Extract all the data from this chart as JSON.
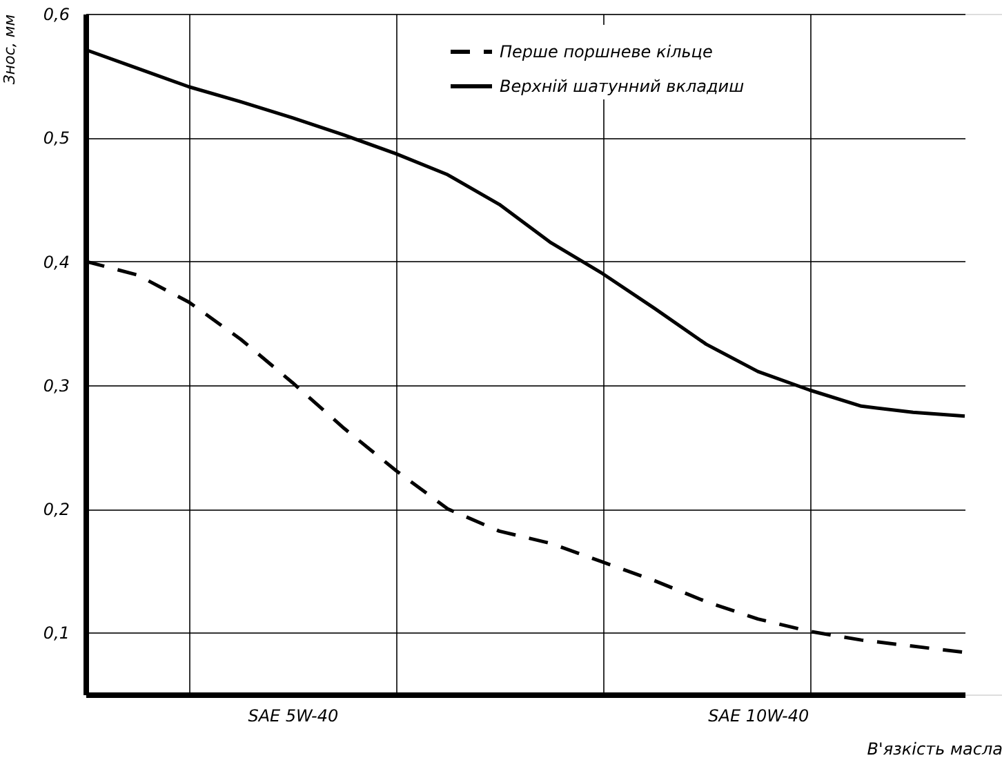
{
  "chart_data": {
    "type": "line",
    "xlabel": "В'язкість масла",
    "ylabel": "Знос, мм",
    "categories": [
      null,
      null,
      null,
      null,
      "SAE 5W-40",
      null,
      null,
      null,
      null,
      null,
      null,
      null,
      null,
      "SAE 10W-40",
      null,
      null,
      null,
      null
    ],
    "ylim": [
      0.05,
      0.6
    ],
    "yticks": [
      {
        "value": 0.1,
        "label": "0,1"
      },
      {
        "value": 0.2,
        "label": "0,2"
      },
      {
        "value": 0.3,
        "label": "0,3"
      },
      {
        "value": 0.4,
        "label": "0,4"
      },
      {
        "value": 0.5,
        "label": "0,5"
      },
      {
        "value": 0.6,
        "label": "0,6"
      }
    ],
    "grid": true,
    "legend": "top",
    "marker": "none",
    "series": [
      {
        "name": "Перше поршневе кільце",
        "color": "#000000",
        "line_style": "dashed",
        "values": [
          0.4,
          0.389,
          0.367,
          0.337,
          0.302,
          0.265,
          0.231,
          0.2,
          0.182,
          0.172,
          0.157,
          0.142,
          0.125,
          0.111,
          0.101,
          0.094,
          0.089,
          0.084
        ]
      },
      {
        "name": "Верхній шатунний вкладиш",
        "color": "#000000",
        "line_style": "solid",
        "values": [
          0.571,
          0.556,
          0.541,
          0.529,
          0.516,
          0.502,
          0.487,
          0.47,
          0.446,
          0.415,
          0.39,
          0.362,
          0.333,
          0.311,
          0.296,
          0.283,
          0.278,
          0.275
        ]
      }
    ]
  }
}
